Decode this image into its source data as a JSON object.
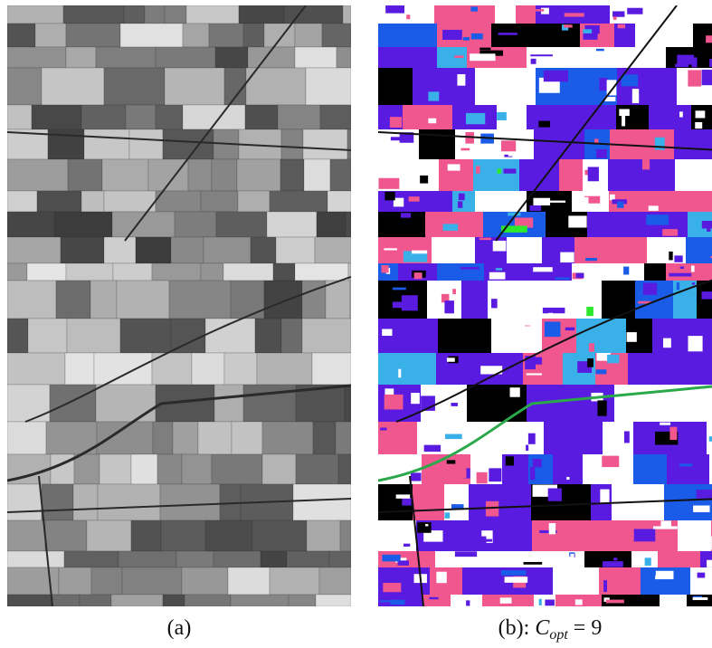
{
  "figure": {
    "caption_a": "(a)",
    "caption_b_prefix": "(b): ",
    "caption_b_var": "C",
    "caption_b_sub": "opt",
    "caption_b_eq": " = 9"
  },
  "panel_a": {
    "kind": "grayscale satellite image of agricultural fields"
  },
  "panel_b": {
    "kind": "classification map",
    "class_colors": [
      "#ffffff",
      "#000000",
      "#5a1be0",
      "#f0578f",
      "#1a5be8",
      "#3ab0e8",
      "#2ee82e"
    ]
  }
}
